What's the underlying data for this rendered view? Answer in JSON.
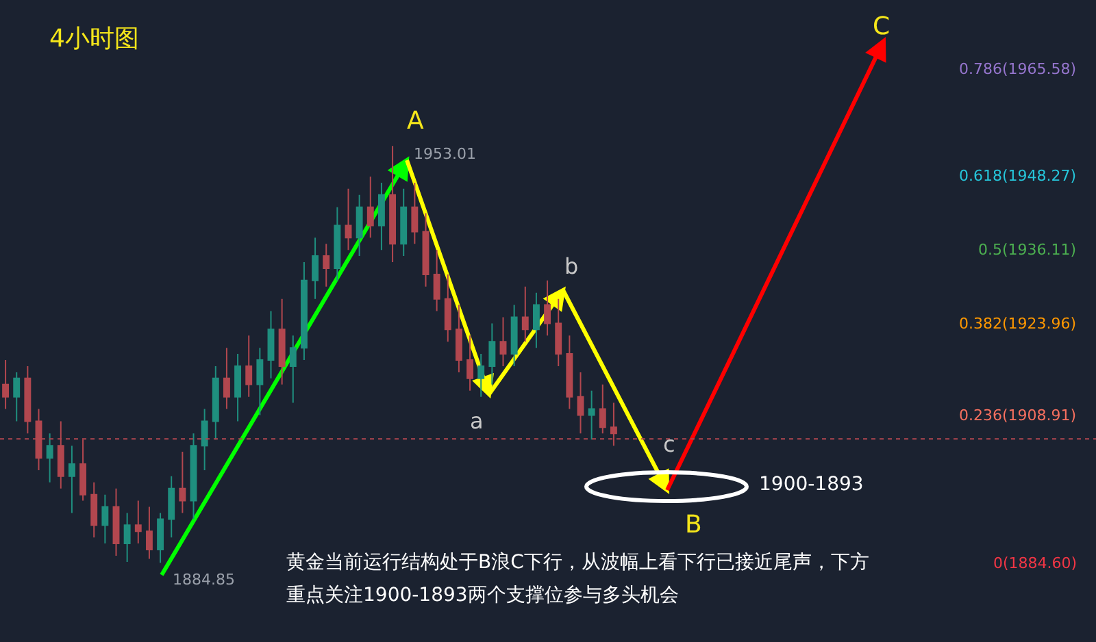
{
  "chart_data": {
    "type": "candlestick",
    "title": "4小时图",
    "tick_labels": false,
    "grid": false,
    "categories": [
      null,
      null,
      null,
      null,
      null,
      null,
      null,
      null,
      null,
      null,
      null,
      null,
      null,
      null,
      null,
      null,
      null,
      null,
      null,
      null,
      null,
      null,
      null,
      null,
      null,
      null,
      null,
      null,
      null,
      null,
      null,
      null,
      null,
      null,
      null,
      null,
      null,
      null,
      null,
      null,
      null,
      null,
      null,
      null,
      null,
      null,
      null,
      null,
      null,
      null,
      null,
      null,
      null,
      null,
      null,
      null
    ],
    "ohlc": [
      [
        1914,
        1918,
        1910,
        1912
      ],
      [
        1912,
        1916,
        1908,
        1915
      ],
      [
        1915,
        1917,
        1906,
        1908
      ],
      [
        1908,
        1910,
        1900,
        1902
      ],
      [
        1902,
        1906,
        1898,
        1904
      ],
      [
        1904,
        1908,
        1897,
        1899
      ],
      [
        1899,
        1904,
        1893,
        1901
      ],
      [
        1901,
        1905,
        1895,
        1896
      ],
      [
        1896,
        1898,
        1889,
        1891
      ],
      [
        1891,
        1896,
        1888,
        1894
      ],
      [
        1894,
        1897,
        1886,
        1888
      ],
      [
        1888,
        1893,
        1885,
        1891
      ],
      [
        1891,
        1895,
        1888,
        1890
      ],
      [
        1890,
        1894,
        1885.5,
        1887
      ],
      [
        1887,
        1893,
        1884.85,
        1892
      ],
      [
        1892,
        1899,
        1889,
        1897
      ],
      [
        1897,
        1903,
        1893,
        1895
      ],
      [
        1895,
        1906,
        1892,
        1904
      ],
      [
        1904,
        1910,
        1900,
        1908
      ],
      [
        1908,
        1917,
        1905,
        1915
      ],
      [
        1915,
        1920,
        1910,
        1912
      ],
      [
        1912,
        1919,
        1908,
        1917
      ],
      [
        1917,
        1922,
        1912,
        1914
      ],
      [
        1914,
        1920,
        1909,
        1918
      ],
      [
        1918,
        1926,
        1915,
        1923
      ],
      [
        1923,
        1928,
        1914,
        1917
      ],
      [
        1917,
        1922,
        1911,
        1920
      ],
      [
        1920,
        1934,
        1918,
        1931
      ],
      [
        1931,
        1938,
        1928,
        1935
      ],
      [
        1935,
        1937,
        1930,
        1933
      ],
      [
        1933,
        1943,
        1931,
        1940
      ],
      [
        1940,
        1946,
        1936,
        1938
      ],
      [
        1938,
        1945,
        1935,
        1943
      ],
      [
        1943,
        1948,
        1938,
        1940
      ],
      [
        1940,
        1947,
        1936,
        1945
      ],
      [
        1945,
        1953.01,
        1934,
        1937
      ],
      [
        1937,
        1946,
        1935,
        1943
      ],
      [
        1943,
        1947,
        1937,
        1939
      ],
      [
        1939,
        1942,
        1930,
        1932
      ],
      [
        1932,
        1936,
        1926,
        1928
      ],
      [
        1928,
        1932,
        1921,
        1923
      ],
      [
        1923,
        1927,
        1916,
        1918
      ],
      [
        1918,
        1922,
        1913,
        1915
      ],
      [
        1915,
        1919,
        1912,
        1917
      ],
      [
        1917,
        1924,
        1914,
        1921
      ],
      [
        1921,
        1925,
        1917,
        1919
      ],
      [
        1919,
        1927,
        1917,
        1925
      ],
      [
        1925,
        1930,
        1921,
        1923
      ],
      [
        1923,
        1929,
        1920,
        1927
      ],
      [
        1927,
        1931,
        1922,
        1924
      ],
      [
        1924,
        1928,
        1917,
        1919
      ],
      [
        1919,
        1922,
        1910,
        1912
      ],
      [
        1912,
        1916,
        1906,
        1909
      ],
      [
        1909,
        1913,
        1905,
        1910
      ],
      [
        1910,
        1914,
        1906,
        1907
      ],
      [
        1907,
        1911,
        1904,
        1906
      ]
    ],
    "colors": [
      "#b2474f",
      "#1f8f7f",
      "#b2474f",
      "#b2474f",
      "#1f8f7f",
      "#b2474f",
      "#1f8f7f",
      "#b2474f",
      "#b2474f",
      "#1f8f7f",
      "#b2474f",
      "#1f8f7f",
      "#b2474f",
      "#b2474f",
      "#1f8f7f",
      "#1f8f7f",
      "#b2474f",
      "#1f8f7f",
      "#1f8f7f",
      "#1f8f7f",
      "#b2474f",
      "#1f8f7f",
      "#b2474f",
      "#1f8f7f",
      "#1f8f7f",
      "#b2474f",
      "#1f8f7f",
      "#1f8f7f",
      "#1f8f7f",
      "#b2474f",
      "#1f8f7f",
      "#b2474f",
      "#1f8f7f",
      "#b2474f",
      "#1f8f7f",
      "#b2474f",
      "#1f8f7f",
      "#b2474f",
      "#b2474f",
      "#b2474f",
      "#b2474f",
      "#b2474f",
      "#b2474f",
      "#1f8f7f",
      "#1f8f7f",
      "#b2474f",
      "#1f8f7f",
      "#b2474f",
      "#1f8f7f",
      "#b2474f",
      "#b2474f",
      "#b2474f",
      "#b2474f",
      "#1f8f7f",
      "#b2474f",
      "#b2474f"
    ],
    "ref_lines": [
      {
        "axis": "y",
        "value": 1905.1,
        "color": "#b2474f",
        "line_style": "dotted"
      }
    ],
    "annotations": [
      "A",
      "1953.01",
      "1884.85",
      "a",
      "b",
      "c",
      "B",
      "C",
      "1900-1893",
      "0.786(1965.58)",
      "0.618(1948.27)",
      "0.5(1936.11)",
      "0.382(1923.96)",
      "0.236(1908.91)",
      "0(1884.60)",
      "黄金当前运行结构处于B浪C下行，从波幅上看下行已接近尾声，下方",
      "重点关注1900-1893两个支撑位参与多头机会"
    ]
  }
}
